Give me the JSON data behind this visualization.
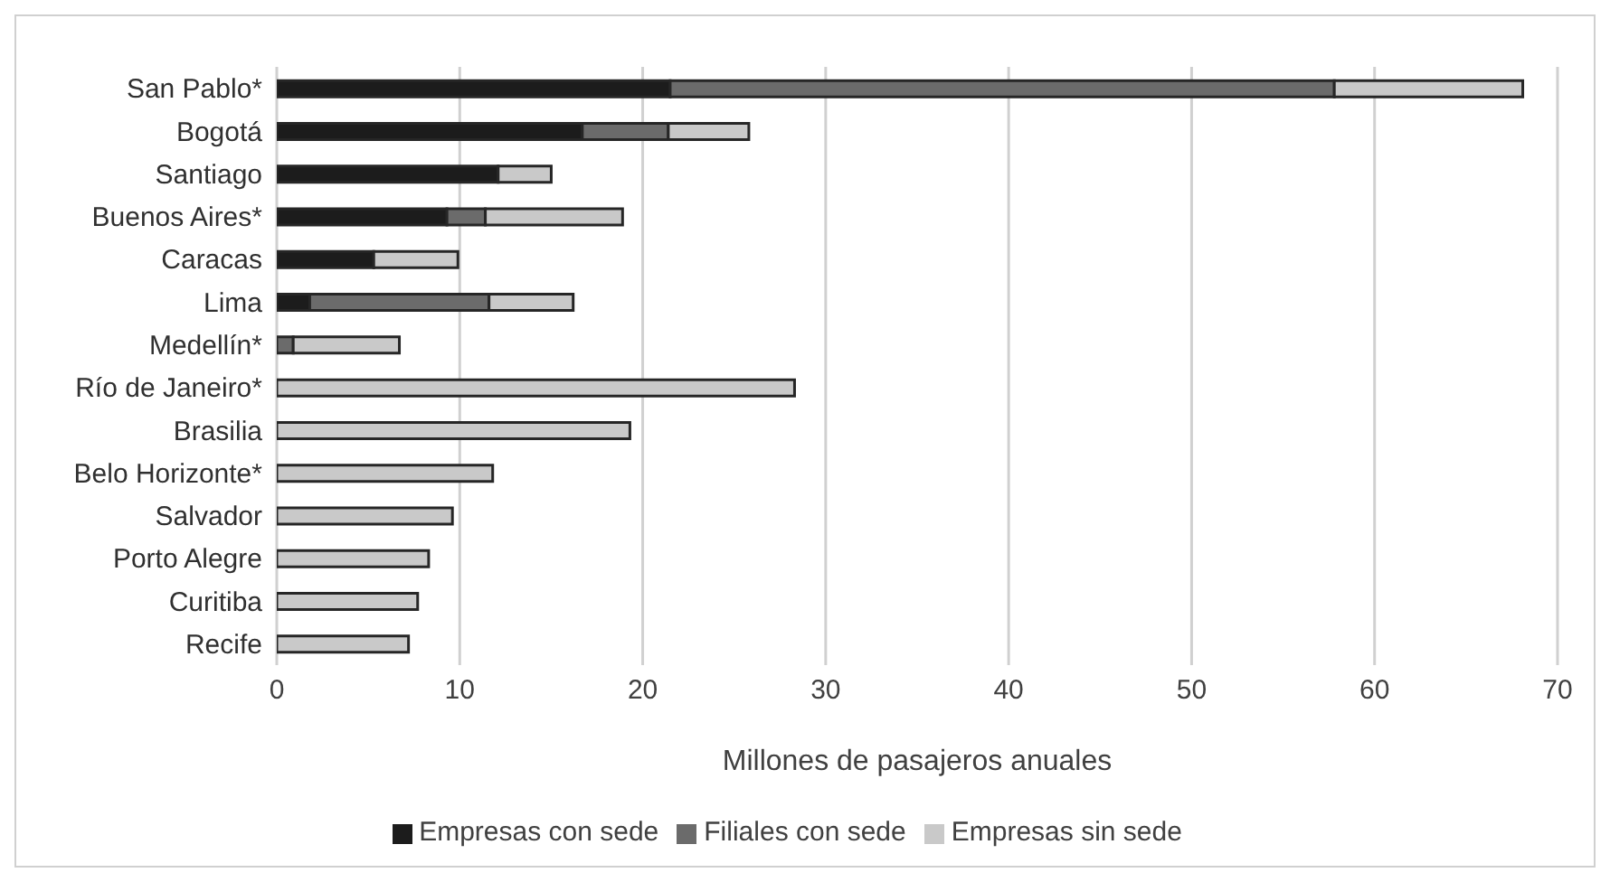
{
  "chart_data": {
    "type": "bar",
    "orientation": "horizontal",
    "stacked": true,
    "xlabel": "Millones de pasajeros anuales",
    "categories": [
      "San Pablo*",
      "Bogotá",
      "Santiago",
      "Buenos Aires*",
      "Caracas",
      "Lima",
      "Medellín*",
      "Río de Janeiro*",
      "Brasilia",
      "Belo Horizonte*",
      "Salvador",
      "Porto Alegre",
      "Curitiba",
      "Recife"
    ],
    "series": [
      {
        "name": "Empresas con sede",
        "color": "#1c1c1c",
        "values": [
          21.5,
          16.7,
          12.1,
          9.3,
          5.3,
          1.8,
          0,
          0,
          0,
          0,
          0,
          0,
          0,
          0
        ]
      },
      {
        "name": "Filiales con sede",
        "color": "#6b6b6b",
        "values": [
          36.3,
          4.7,
          0,
          2.1,
          0,
          9.8,
          0.9,
          0,
          0,
          0,
          0,
          0,
          0,
          0
        ]
      },
      {
        "name": "Empresas sin sede",
        "color": "#c9c9c9",
        "values": [
          10.3,
          4.4,
          2.9,
          7.5,
          4.6,
          4.6,
          5.8,
          28.3,
          19.3,
          11.8,
          9.6,
          8.3,
          7.7,
          7.2
        ]
      }
    ],
    "xlim": [
      0,
      70
    ],
    "xticks": [
      0,
      10,
      20,
      30,
      40,
      50,
      60,
      70
    ],
    "grid": "x",
    "legend": "bottom"
  }
}
